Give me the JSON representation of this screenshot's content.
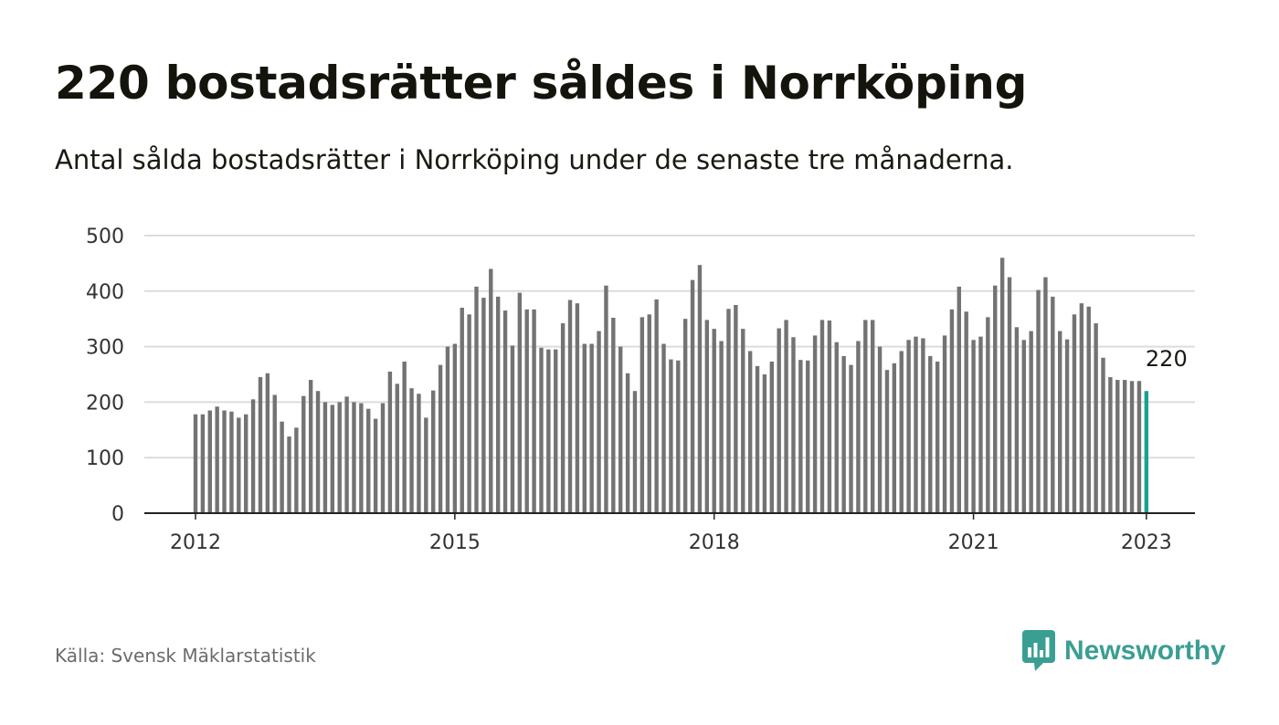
{
  "header": {
    "title": "220 bostadsrätter såldes i Norrköping",
    "subtitle": "Antal sålda bostadsrätter i Norrköping under de senaste tre månaderna."
  },
  "footer": {
    "source": "Källa: Svensk Mäklarstatistik",
    "brand": "Newsworthy"
  },
  "colors": {
    "bar": "#737373",
    "highlight": "#1aa191",
    "grid": "#dcdcdc",
    "brand": "#3a9e93"
  },
  "chart_data": {
    "type": "bar",
    "ylim": [
      0,
      500
    ],
    "y_ticks": [
      "0",
      "100",
      "200",
      "300",
      "400",
      "500"
    ],
    "x_ticks": [
      "2012",
      "2015",
      "2018",
      "2021",
      "2023"
    ],
    "x_tick_indices": [
      0,
      36,
      72,
      108,
      132
    ],
    "callout": "220",
    "values": [
      178,
      178,
      185,
      192,
      185,
      183,
      172,
      178,
      205,
      245,
      252,
      213,
      165,
      138,
      154,
      211,
      240,
      220,
      200,
      195,
      200,
      210,
      200,
      198,
      188,
      170,
      198,
      255,
      233,
      273,
      225,
      215,
      172,
      221,
      267,
      300,
      305,
      370,
      358,
      408,
      388,
      440,
      390,
      365,
      302,
      397,
      367,
      367,
      298,
      295,
      295,
      342,
      384,
      378,
      305,
      305,
      328,
      410,
      352,
      300,
      252,
      220,
      353,
      358,
      385,
      305,
      277,
      275,
      350,
      420,
      447,
      348,
      332,
      310,
      368,
      375,
      332,
      292,
      265,
      250,
      273,
      333,
      348,
      317,
      276,
      275,
      320,
      348,
      347,
      308,
      283,
      267,
      310,
      348,
      348,
      300,
      258,
      270,
      292,
      312,
      318,
      315,
      283,
      273,
      320,
      367,
      408,
      363,
      312,
      318,
      353,
      410,
      460,
      425,
      335,
      312,
      328,
      402,
      425,
      390,
      328,
      313,
      358,
      378,
      372,
      342,
      280,
      245,
      240,
      240,
      238,
      238,
      220
    ]
  }
}
